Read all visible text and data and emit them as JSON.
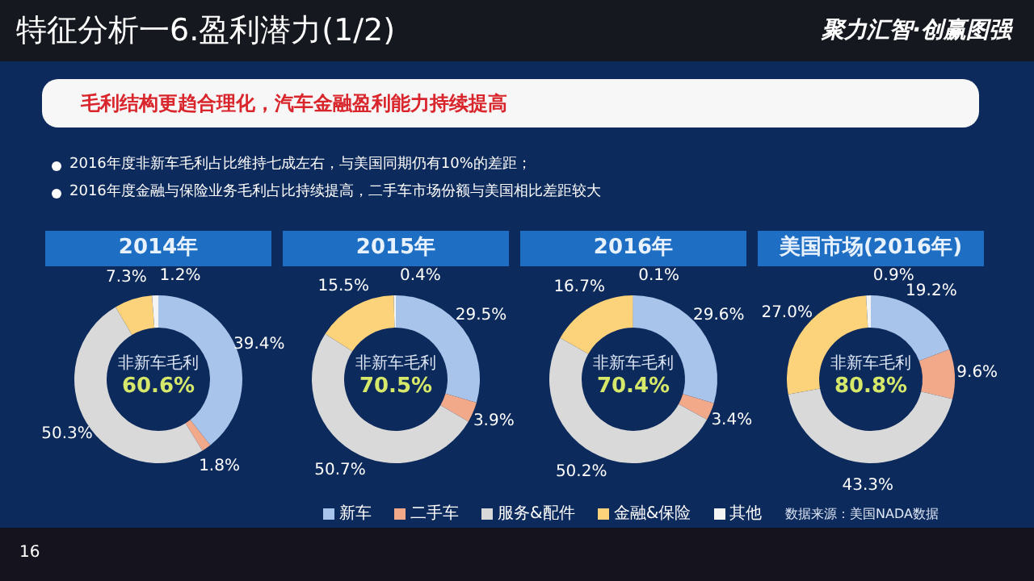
{
  "chart_data": [
    {
      "type": "donut",
      "title": "2014年",
      "categories": [
        "新车",
        "二手车",
        "服务&配件",
        "金融&保险",
        "其他"
      ],
      "values": [
        39.4,
        1.8,
        50.3,
        7.3,
        1.2
      ],
      "value_labels": [
        "39.4%",
        "1.8%",
        "50.3%",
        "7.3%",
        "1.2%"
      ],
      "colors": [
        "#a9c4ea",
        "#f2a98a",
        "#d9d9d9",
        "#fcd27a",
        "#f4f4f4"
      ],
      "legend": "bottom",
      "annotations": [
        "特征分析一6.盈利潜力(1/2)",
        "聚力汇智·创赢图强",
        "毛利结构更趋合理化，汽车金融盈利能力持续提高",
        "2016年度非新车毛利占比维持七成左右，与美国同期仍有10%的差距；",
        "2016年度金融与保险业务毛利占比持续提高，二手车市场份额与美国相比差距较大",
        "16",
        "非新车毛利",
        "60.6%"
      ]
    },
    {
      "type": "donut",
      "title": "2015年",
      "categories": [
        null,
        null,
        null,
        null,
        null
      ],
      "values": [
        29.5,
        3.9,
        50.7,
        15.5,
        0.4
      ],
      "value_labels": [
        "29.5%",
        "3.9%",
        "50.7%",
        "15.5%",
        "0.4%"
      ],
      "colors": [
        "#a9c4ea",
        "#f2a98a",
        "#d9d9d9",
        "#fcd27a",
        "#f4f4f4"
      ],
      "annotations": [
        "非新车毛利",
        "70.5%"
      ]
    },
    {
      "type": "donut",
      "title": "2016年",
      "categories": [
        null,
        null,
        null,
        null,
        null
      ],
      "values": [
        29.6,
        3.4,
        50.2,
        16.7,
        0.1
      ],
      "value_labels": [
        "29.6%",
        "3.4%",
        "50.2%",
        "16.7%",
        "0.1%"
      ],
      "colors": [
        "#a9c4ea",
        "#f2a98a",
        "#d9d9d9",
        "#fcd27a",
        "#f4f4f4"
      ],
      "annotations": [
        "非新车毛利",
        "70.4%"
      ]
    },
    {
      "type": "donut",
      "title": "美国市场(2016年)",
      "categories": [
        null,
        null,
        null,
        null,
        null
      ],
      "values": [
        19.2,
        9.6,
        43.3,
        27.0,
        0.9
      ],
      "value_labels": [
        "19.2%",
        "9.6%",
        "43.3%",
        "27.0%",
        "0.9%"
      ],
      "colors": [
        "#a9c4ea",
        "#f2a98a",
        "#d9d9d9",
        "#fcd27a",
        "#f4f4f4"
      ],
      "annotations": [
        "非新车毛利",
        "80.8%",
        "数据来源：美国NADA数据"
      ]
    }
  ]
}
